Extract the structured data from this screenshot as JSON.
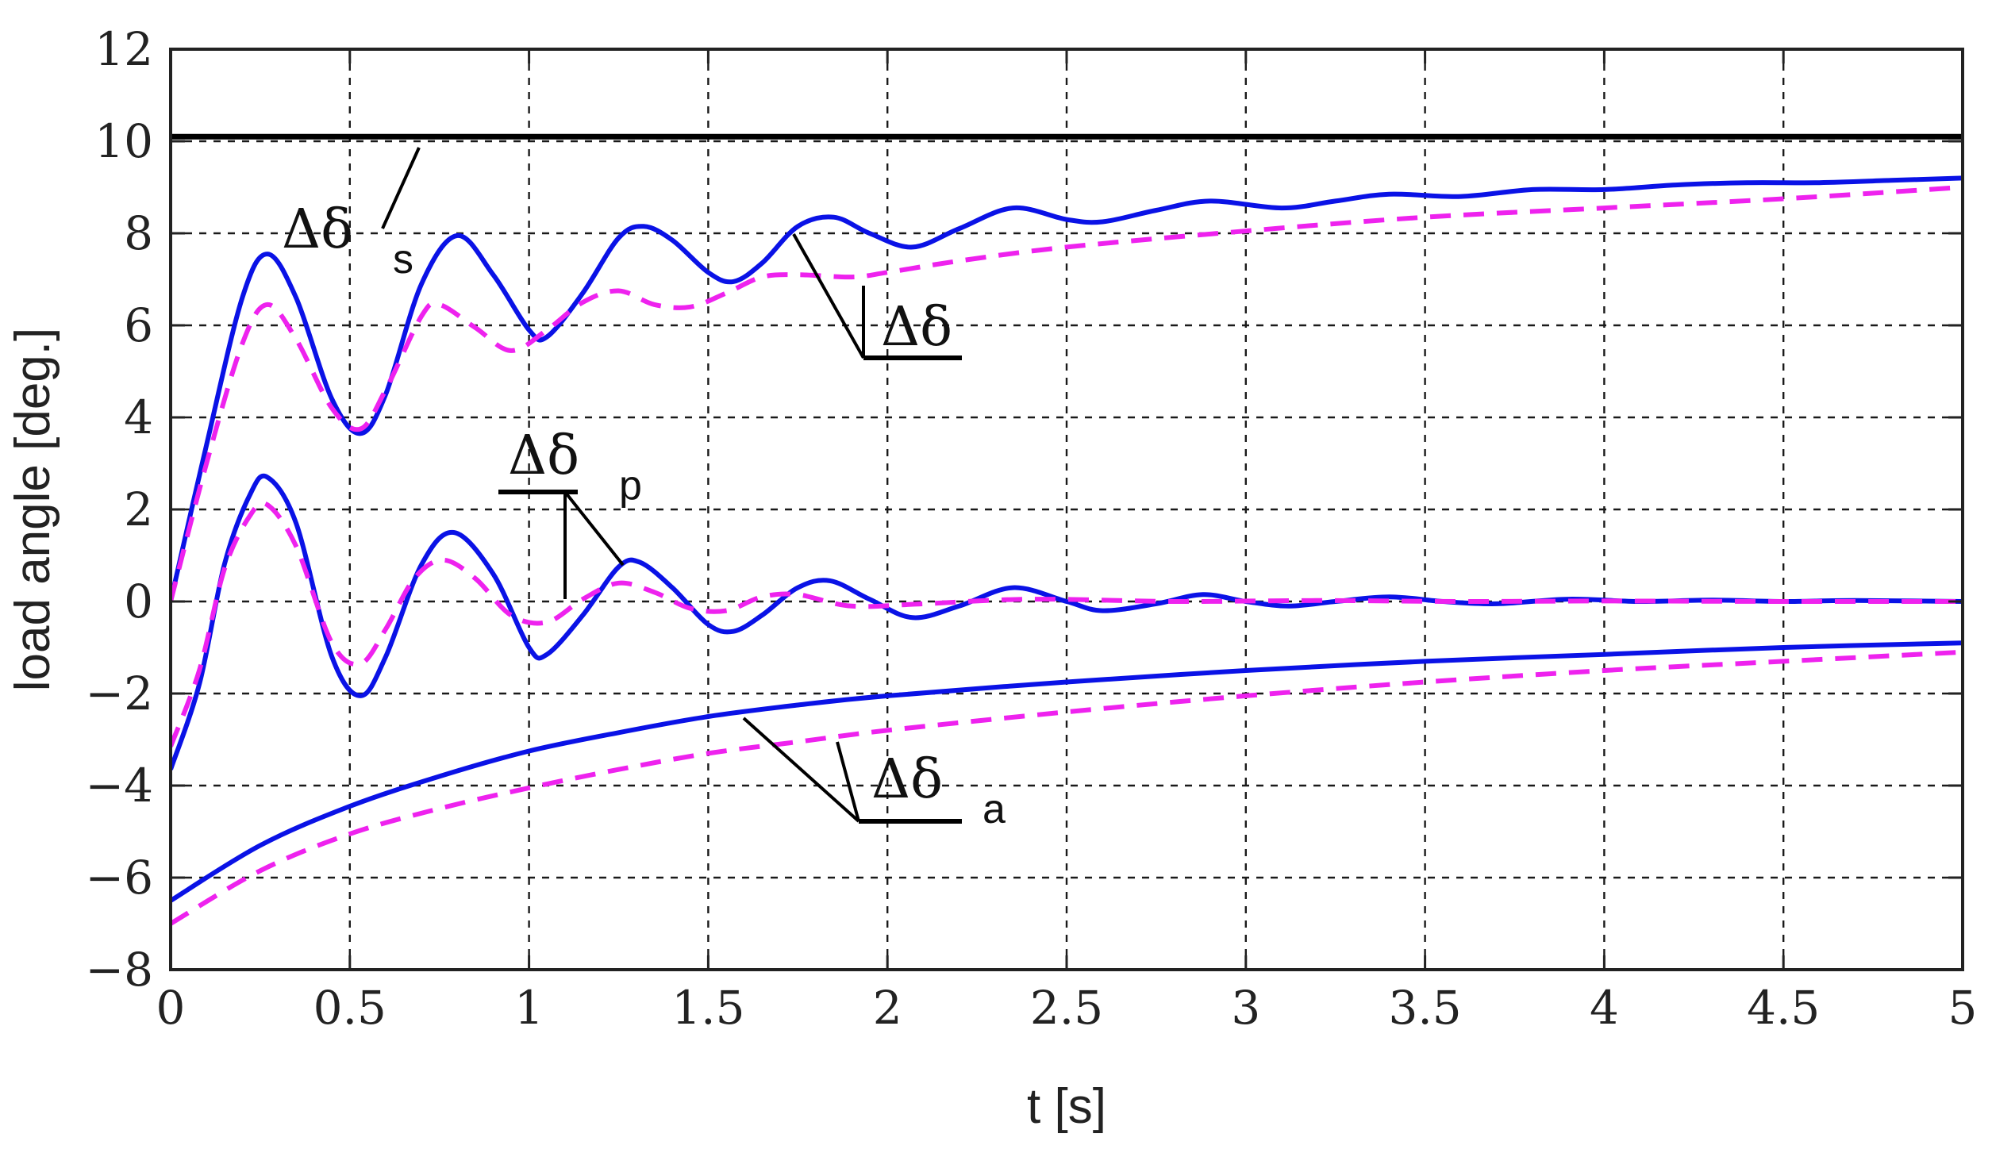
{
  "chart_data": {
    "type": "line",
    "xlabel": "t [s]",
    "ylabel": "load angle  [deg.]",
    "xlim": [
      0,
      5
    ],
    "ylim": [
      -8,
      12
    ],
    "xticks": [
      0,
      0.5,
      1,
      1.5,
      2,
      2.5,
      3,
      3.5,
      4,
      4.5,
      5
    ],
    "xtick_labels": [
      "0",
      "0.5",
      "1",
      "1.5",
      "2",
      "2.5",
      "3",
      "3.5",
      "4",
      "4.5",
      "5"
    ],
    "yticks": [
      -8,
      -6,
      -4,
      -2,
      0,
      2,
      4,
      6,
      8,
      10,
      12
    ],
    "ytick_labels": [
      "−8",
      "−6",
      "−4",
      "−2",
      "0",
      "2",
      "4",
      "6",
      "8",
      "10",
      "12"
    ],
    "grid": true,
    "legend": "none",
    "colors": {
      "solid": "#0a12e6",
      "dashed": "#ee22ee",
      "steady": "#000000"
    },
    "annotations": [
      {
        "base": "Δδ",
        "sub": "s",
        "points_to": [
          0.68,
          10.05
        ]
      },
      {
        "base": "Δδ",
        "sub": "",
        "points_to": [
          1.72,
          7.9
        ]
      },
      {
        "base": "Δδ",
        "sub": "p",
        "points_to": [
          1.24,
          0.8
        ]
      },
      {
        "base": "Δδ",
        "sub": "a",
        "points_to": [
          1.58,
          -2.45
        ]
      }
    ],
    "series": [
      {
        "style": "solid",
        "color": "#000000",
        "x": [
          0,
          5
        ],
        "y": [
          10.1,
          10.1
        ]
      },
      {
        "style": "solid",
        "color": "#0a12e6",
        "x": [
          0,
          0.1,
          0.2,
          0.27,
          0.35,
          0.45,
          0.53,
          0.6,
          0.7,
          0.8,
          0.9,
          1.0,
          1.05,
          1.15,
          1.25,
          1.32,
          1.4,
          1.5,
          1.57,
          1.65,
          1.75,
          1.85,
          1.95,
          2.07,
          2.2,
          2.35,
          2.5,
          2.6,
          2.75,
          2.9,
          3.1,
          3.25,
          3.4,
          3.6,
          3.8,
          4.0,
          4.2,
          4.4,
          4.6,
          4.8,
          5.0
        ],
        "y": [
          0.0,
          3.4,
          6.6,
          7.55,
          6.6,
          4.4,
          3.65,
          4.5,
          6.9,
          7.95,
          7.1,
          5.9,
          5.75,
          6.7,
          7.9,
          8.15,
          7.85,
          7.15,
          6.95,
          7.35,
          8.15,
          8.35,
          8.0,
          7.7,
          8.1,
          8.55,
          8.3,
          8.25,
          8.5,
          8.7,
          8.55,
          8.7,
          8.85,
          8.8,
          8.95,
          8.95,
          9.05,
          9.1,
          9.1,
          9.15,
          9.2
        ]
      },
      {
        "style": "dashed",
        "color": "#ee22ee",
        "x": [
          0,
          0.1,
          0.2,
          0.27,
          0.35,
          0.45,
          0.53,
          0.6,
          0.7,
          0.75,
          0.85,
          0.95,
          1.05,
          1.15,
          1.25,
          1.35,
          1.45,
          1.55,
          1.65,
          1.75,
          1.9,
          2.0,
          2.2,
          2.5,
          3.0,
          3.5,
          4.0,
          4.5,
          5.0
        ],
        "y": [
          0.0,
          3.0,
          5.6,
          6.45,
          5.7,
          4.2,
          3.75,
          4.6,
          6.2,
          6.45,
          5.95,
          5.45,
          5.9,
          6.5,
          6.75,
          6.45,
          6.4,
          6.7,
          7.05,
          7.1,
          7.05,
          7.15,
          7.4,
          7.7,
          8.05,
          8.35,
          8.55,
          8.75,
          9.0
        ]
      },
      {
        "style": "solid",
        "color": "#0a12e6",
        "x": [
          0,
          0.08,
          0.15,
          0.22,
          0.27,
          0.35,
          0.45,
          0.53,
          0.6,
          0.7,
          0.79,
          0.9,
          1.0,
          1.05,
          1.15,
          1.25,
          1.31,
          1.4,
          1.5,
          1.57,
          1.65,
          1.75,
          1.84,
          1.95,
          2.07,
          2.2,
          2.35,
          2.5,
          2.6,
          2.75,
          2.88,
          3.0,
          3.12,
          3.25,
          3.4,
          3.55,
          3.7,
          3.9,
          4.1,
          4.3,
          4.5,
          4.7,
          5.0
        ],
        "y": [
          -3.65,
          -1.8,
          0.8,
          2.3,
          2.7,
          1.7,
          -1.2,
          -2.05,
          -1.2,
          0.8,
          1.5,
          0.6,
          -1.0,
          -1.15,
          -0.3,
          0.75,
          0.85,
          0.3,
          -0.5,
          -0.65,
          -0.3,
          0.3,
          0.45,
          0.05,
          -0.35,
          -0.1,
          0.3,
          0.0,
          -0.2,
          -0.05,
          0.15,
          0.0,
          -0.1,
          0.0,
          0.1,
          0.0,
          -0.05,
          0.05,
          0.0,
          0.03,
          0.0,
          0.02,
          0.0
        ]
      },
      {
        "style": "dashed",
        "color": "#ee22ee",
        "x": [
          0,
          0.08,
          0.15,
          0.22,
          0.27,
          0.35,
          0.45,
          0.53,
          0.6,
          0.68,
          0.76,
          0.85,
          0.95,
          1.05,
          1.15,
          1.25,
          1.35,
          1.45,
          1.55,
          1.65,
          1.75,
          1.9,
          2.1,
          2.4,
          2.8,
          3.2,
          3.6,
          4.0,
          4.5,
          5.0
        ],
        "y": [
          -3.15,
          -1.5,
          0.7,
          1.85,
          2.1,
          1.2,
          -0.9,
          -1.35,
          -0.6,
          0.5,
          0.9,
          0.5,
          -0.3,
          -0.45,
          0.05,
          0.4,
          0.2,
          -0.15,
          -0.2,
          0.1,
          0.15,
          -0.1,
          -0.05,
          0.05,
          0.0,
          0.02,
          0.0,
          0.01,
          0.0,
          0.0
        ]
      },
      {
        "style": "solid",
        "color": "#0a12e6",
        "x": [
          0,
          0.25,
          0.5,
          0.75,
          1.0,
          1.25,
          1.5,
          1.75,
          2.0,
          2.5,
          3.0,
          3.5,
          4.0,
          4.5,
          5.0
        ],
        "y": [
          -6.5,
          -5.3,
          -4.45,
          -3.8,
          -3.25,
          -2.85,
          -2.5,
          -2.25,
          -2.05,
          -1.75,
          -1.5,
          -1.3,
          -1.15,
          -1.0,
          -0.9
        ]
      },
      {
        "style": "dashed",
        "color": "#ee22ee",
        "x": [
          0,
          0.25,
          0.5,
          0.75,
          1.0,
          1.25,
          1.5,
          1.75,
          2.0,
          2.5,
          3.0,
          3.5,
          4.0,
          4.5,
          5.0
        ],
        "y": [
          -7.0,
          -5.85,
          -5.05,
          -4.5,
          -4.05,
          -3.65,
          -3.3,
          -3.05,
          -2.8,
          -2.4,
          -2.05,
          -1.75,
          -1.5,
          -1.3,
          -1.1
        ]
      }
    ]
  }
}
